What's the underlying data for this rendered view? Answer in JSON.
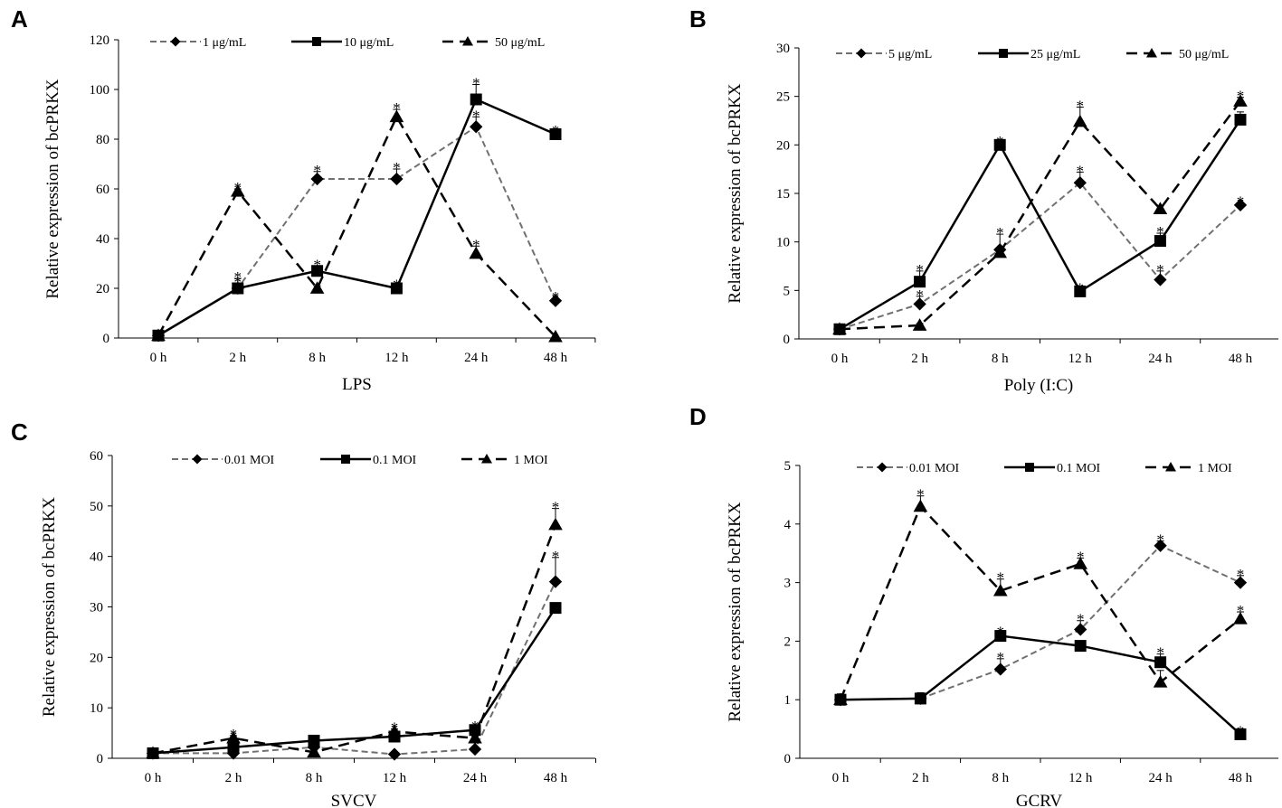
{
  "chart_data": [
    {
      "panel": "A",
      "type": "line",
      "xlabel": "LPS",
      "ylabel": "Relative expression of bcPRKX",
      "categories": [
        "0 h",
        "2 h",
        "8 h",
        "12 h",
        "24 h",
        "48 h"
      ],
      "ylim": [
        0,
        120
      ],
      "yticks": [
        0,
        20,
        40,
        60,
        80,
        100,
        120
      ],
      "series": [
        {
          "name": "1 μg/mL",
          "style": "gray-dash",
          "marker": "diamond",
          "values": [
            1,
            20,
            64,
            64,
            85,
            15
          ],
          "errors": [
            0,
            2,
            3,
            4,
            4,
            1
          ],
          "sig": [
            false,
            true,
            true,
            true,
            true,
            true
          ]
        },
        {
          "name": "10 μg/mL",
          "style": "solid",
          "marker": "square",
          "values": [
            1,
            20,
            27,
            20,
            96,
            82
          ],
          "errors": [
            0,
            4,
            2,
            1,
            6,
            1
          ],
          "sig": [
            false,
            true,
            true,
            true,
            true,
            true
          ]
        },
        {
          "name": "50 μg/mL",
          "style": "dash",
          "marker": "triangle",
          "values": [
            1,
            59,
            20,
            89,
            34,
            0.5
          ],
          "errors": [
            0,
            1,
            1,
            3,
            3,
            0
          ],
          "sig": [
            false,
            true,
            false,
            true,
            true,
            false
          ]
        }
      ]
    },
    {
      "panel": "B",
      "type": "line",
      "xlabel": "Poly (I:C)",
      "ylabel": "Relative expression of bcPRKX",
      "categories": [
        "0 h",
        "2 h",
        "8 h",
        "12 h",
        "24 h",
        "48 h"
      ],
      "ylim": [
        0,
        30
      ],
      "yticks": [
        0,
        5,
        10,
        15,
        20,
        25,
        30
      ],
      "series": [
        {
          "name": "5 μg/mL",
          "style": "gray-dash",
          "marker": "diamond",
          "values": [
            1,
            3.6,
            9.2,
            16.1,
            6.1,
            13.8
          ],
          "errors": [
            0,
            0.8,
            1.6,
            1.1,
            0.9,
            0.2
          ],
          "sig": [
            false,
            true,
            true,
            true,
            true,
            true
          ]
        },
        {
          "name": "25 μg/mL",
          "style": "solid",
          "marker": "square",
          "values": [
            1,
            5.9,
            20,
            4.9,
            10.1,
            22.6
          ],
          "errors": [
            0,
            1.1,
            0.2,
            0.2,
            0.8,
            0.8
          ],
          "sig": [
            false,
            true,
            true,
            true,
            true,
            false
          ]
        },
        {
          "name": "50 μg/mL",
          "style": "dash",
          "marker": "triangle",
          "values": [
            1,
            1.4,
            8.9,
            22.4,
            13.4,
            24.5
          ],
          "errors": [
            0,
            0.2,
            0.3,
            1.5,
            0.3,
            0.4
          ],
          "sig": [
            false,
            false,
            false,
            true,
            false,
            true
          ]
        }
      ]
    },
    {
      "panel": "C",
      "type": "line",
      "xlabel": "SVCV",
      "ylabel": "Relative expression of bcPRKX",
      "categories": [
        "0 h",
        "2 h",
        "8 h",
        "12 h",
        "24 h",
        "48 h"
      ],
      "ylim": [
        0,
        60
      ],
      "yticks": [
        0,
        10,
        20,
        30,
        40,
        50,
        60
      ],
      "series": [
        {
          "name": "0.01 MOI",
          "style": "gray-dash",
          "marker": "diamond",
          "values": [
            1,
            1,
            2.2,
            0.8,
            1.8,
            35
          ],
          "errors": [
            0,
            0.2,
            0.3,
            0.2,
            0.3,
            4.8
          ],
          "sig": [
            false,
            false,
            false,
            false,
            false,
            true
          ]
        },
        {
          "name": "0.1 MOI",
          "style": "solid",
          "marker": "square",
          "values": [
            1,
            2.2,
            3.5,
            4.3,
            5.6,
            29.8
          ],
          "errors": [
            0,
            0.3,
            0.5,
            0.4,
            0.5,
            0
          ],
          "sig": [
            false,
            false,
            false,
            false,
            true,
            false
          ]
        },
        {
          "name": "1 MOI",
          "style": "dash",
          "marker": "triangle",
          "values": [
            1,
            4,
            1.2,
            5.3,
            4,
            46.3
          ],
          "errors": [
            0,
            0.5,
            0.2,
            0.5,
            0.4,
            3.2
          ],
          "sig": [
            false,
            true,
            true,
            true,
            false,
            true
          ]
        }
      ]
    },
    {
      "panel": "D",
      "type": "line",
      "xlabel": "GCRV",
      "ylabel": "Relative expression of bcPRKX",
      "categories": [
        "0 h",
        "2 h",
        "8 h",
        "12 h",
        "24 h",
        "48 h"
      ],
      "ylim": [
        0,
        5
      ],
      "yticks": [
        0,
        1,
        2,
        3,
        4,
        5
      ],
      "series": [
        {
          "name": "0.01 MOI",
          "style": "gray-dash",
          "marker": "diamond",
          "values": [
            1,
            1.02,
            1.52,
            2.2,
            3.63,
            3.0
          ],
          "errors": [
            0.1,
            0.05,
            0.18,
            0.15,
            0.08,
            0.12
          ],
          "sig": [
            false,
            false,
            true,
            true,
            true,
            true
          ]
        },
        {
          "name": "0.1 MOI",
          "style": "solid",
          "marker": "square",
          "values": [
            1,
            1.02,
            2.09,
            1.92,
            1.64,
            0.41
          ],
          "errors": [
            0.03,
            0.1,
            0.05,
            0.06,
            0.14,
            0.03
          ],
          "sig": [
            false,
            false,
            true,
            false,
            true,
            true
          ]
        },
        {
          "name": "1 MOI",
          "style": "dash",
          "marker": "triangle",
          "values": [
            1,
            4.3,
            2.86,
            3.32,
            1.3,
            2.38
          ],
          "errors": [
            0,
            0.18,
            0.2,
            0.1,
            0.2,
            0.12
          ],
          "sig": [
            false,
            true,
            true,
            true,
            false,
            true
          ]
        }
      ]
    }
  ]
}
